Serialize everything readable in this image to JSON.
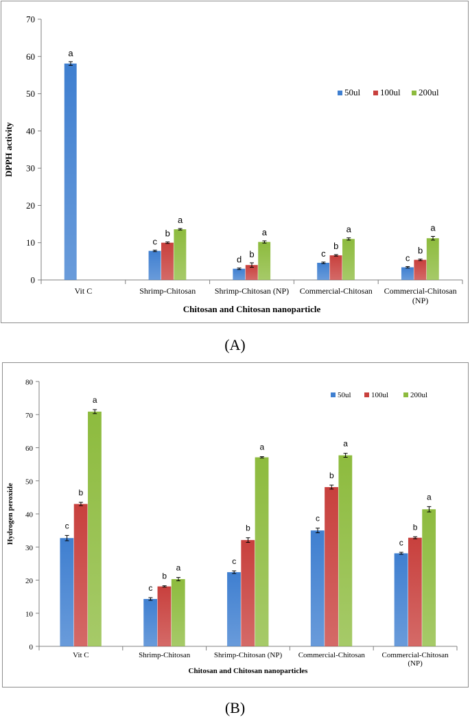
{
  "colors": {
    "s50": "#3f7fd0",
    "s100": "#c8403d",
    "s200": "#8dbb3e",
    "axis": "#7f7f7f",
    "error": "#000000"
  },
  "chart_data": [
    {
      "type": "bar",
      "panel_label": "(A)",
      "title": "",
      "xlabel": "Chitosan and Chitosan nanoparticle",
      "ylabel": "DPPH activity",
      "ylim": [
        0,
        70
      ],
      "yticks": [
        "0",
        "10",
        "20",
        "30",
        "40",
        "50",
        "60",
        "70"
      ],
      "categories": [
        [
          "Vit C"
        ],
        [
          "Shrimp-Chitosan"
        ],
        [
          "Shrimp-Chitosan (NP)"
        ],
        [
          "Commercial-Chitosan"
        ],
        [
          "Commercial-Chitosan",
          "(NP)"
        ]
      ],
      "legend": {
        "position": "top-right",
        "items": [
          "50ul",
          "100ul",
          "200ul"
        ]
      },
      "series": [
        {
          "name": "50ul",
          "values": [
            58.1,
            7.8,
            3.0,
            4.6,
            3.4
          ],
          "errors": [
            0.5,
            0.2,
            0.2,
            0.2,
            0.2
          ],
          "letters": [
            "a",
            "c",
            "d",
            "c",
            "c"
          ]
        },
        {
          "name": "100ul",
          "values": [
            null,
            10.0,
            4.0,
            6.6,
            5.4
          ],
          "errors": [
            null,
            0.2,
            0.6,
            0.2,
            0.2
          ],
          "letters": [
            "",
            "b",
            "b",
            "b",
            "b"
          ]
        },
        {
          "name": "200ul",
          "values": [
            null,
            13.6,
            10.2,
            11.0,
            11.2
          ],
          "errors": [
            null,
            0.2,
            0.3,
            0.3,
            0.5
          ],
          "letters": [
            "",
            "a",
            "a",
            "a",
            "a"
          ]
        }
      ]
    },
    {
      "type": "bar",
      "panel_label": "(B)",
      "title": "",
      "xlabel": "Chitosan and Chitosan nanoparticles",
      "ylabel": "Hydrogen peroxide",
      "ylim": [
        0,
        80
      ],
      "yticks": [
        "0",
        "10",
        "20",
        "30",
        "40",
        "50",
        "60",
        "70",
        "80"
      ],
      "categories": [
        [
          "Vit C"
        ],
        [
          "Shrimp-Chitosan"
        ],
        [
          "Shrimp-Chitosan (NP)"
        ],
        [
          "Commercial-Chitosan"
        ],
        [
          "Commercial-Chitosan",
          "(NP)"
        ]
      ],
      "legend": {
        "position": "top-right",
        "items": [
          "50ul",
          "100ul",
          "200ul"
        ]
      },
      "series": [
        {
          "name": "50ul",
          "values": [
            32.7,
            14.3,
            22.4,
            35.0,
            28.1
          ],
          "errors": [
            0.8,
            0.4,
            0.4,
            0.7,
            0.3
          ],
          "letters": [
            "c",
            "c",
            "c",
            "c",
            "c"
          ]
        },
        {
          "name": "100ul",
          "values": [
            43.0,
            18.1,
            32.1,
            48.1,
            32.8
          ],
          "errors": [
            0.5,
            0.2,
            0.7,
            0.6,
            0.3
          ],
          "letters": [
            "b",
            "b",
            "b",
            "b",
            "b"
          ]
        },
        {
          "name": "200ul",
          "values": [
            70.9,
            20.3,
            57.1,
            57.7,
            41.4
          ],
          "errors": [
            0.6,
            0.5,
            0.2,
            0.6,
            0.8
          ],
          "letters": [
            "a",
            "a",
            "a",
            "a",
            "a"
          ]
        }
      ]
    }
  ]
}
